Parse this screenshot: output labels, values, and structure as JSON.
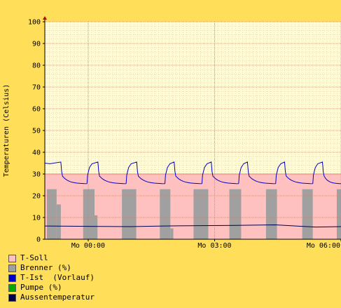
{
  "chart_data": {
    "type": "area",
    "ylabel": "Temperaturen (Celsius)",
    "xlabel": "",
    "ylim": [
      0,
      100
    ],
    "yticks": [
      0,
      10,
      20,
      30,
      40,
      50,
      60,
      70,
      80,
      90,
      100
    ],
    "xlim_hours": [
      -1.03,
      6.0
    ],
    "xticks": [
      {
        "label": "Mo 00:00",
        "hour": 0
      },
      {
        "label": "Mo 03:00",
        "hour": 3
      },
      {
        "label": "Mo 06:00",
        "hour": 6
      }
    ],
    "grid": true,
    "legend_position": "bottom-left",
    "series": [
      {
        "name": "T-Soll",
        "color": "#ffc0c0",
        "kind": "area",
        "value": 30
      },
      {
        "name": "Brenner (%)",
        "color": "#a0a0a0",
        "kind": "bars",
        "bars": [
          {
            "start": -0.98,
            "end": -0.65,
            "top": 23,
            "step_at": -0.75,
            "step_to": 16
          },
          {
            "start": -0.12,
            "end": 0.22,
            "top": 23,
            "step_at": 0.15,
            "step_to": 11
          },
          {
            "start": 0.8,
            "end": 1.14,
            "top": 23,
            "step_at": -1,
            "step_to": 23
          },
          {
            "start": 1.7,
            "end": 2.02,
            "top": 23,
            "step_at": 1.95,
            "step_to": 5
          },
          {
            "start": 2.5,
            "end": 2.85,
            "top": 23,
            "step_at": -1,
            "step_to": 23
          },
          {
            "start": 3.35,
            "end": 3.63,
            "top": 23,
            "step_at": -1,
            "step_to": 23
          },
          {
            "start": 4.22,
            "end": 4.48,
            "top": 23,
            "step_at": -1,
            "step_to": 23
          },
          {
            "start": 5.08,
            "end": 5.33,
            "top": 23,
            "step_at": -1,
            "step_to": 23
          },
          {
            "start": 5.9,
            "end": 6.05,
            "top": 23,
            "step_at": -1,
            "step_to": 23
          }
        ]
      },
      {
        "name": "T-Ist  (Vorlauf)",
        "color": "#0000cc",
        "kind": "line",
        "cycles": [
          {
            "rise": -1.03,
            "drop": -0.63,
            "next": -0.03
          },
          {
            "rise": -0.03,
            "drop": 0.25,
            "next": 0.9
          },
          {
            "rise": 0.9,
            "drop": 1.17,
            "next": 1.82
          },
          {
            "rise": 1.82,
            "drop": 2.06,
            "next": 2.7
          },
          {
            "rise": 2.7,
            "drop": 2.94,
            "next": 3.57
          },
          {
            "rise": 3.57,
            "drop": 3.8,
            "next": 4.45
          },
          {
            "rise": 4.45,
            "drop": 4.68,
            "next": 5.33
          },
          {
            "rise": 5.33,
            "drop": 5.58,
            "next": 6.05
          }
        ],
        "low": 25.5,
        "high": 35.5,
        "after_drop": 29,
        "first_rise_start": 35
      },
      {
        "name": "Pumpe (%)",
        "color": "#00aa00",
        "kind": "line"
      },
      {
        "name": "Aussentemperatur",
        "color": "#00004a",
        "kind": "line",
        "value": 6.2,
        "points": [
          [
            -1.03,
            6.1
          ],
          [
            1.0,
            5.8
          ],
          [
            1.8,
            6.1
          ],
          [
            3.5,
            6.4
          ],
          [
            4.45,
            6.6
          ],
          [
            5.0,
            6.0
          ],
          [
            5.4,
            5.6
          ],
          [
            6.05,
            5.8
          ]
        ]
      }
    ]
  }
}
